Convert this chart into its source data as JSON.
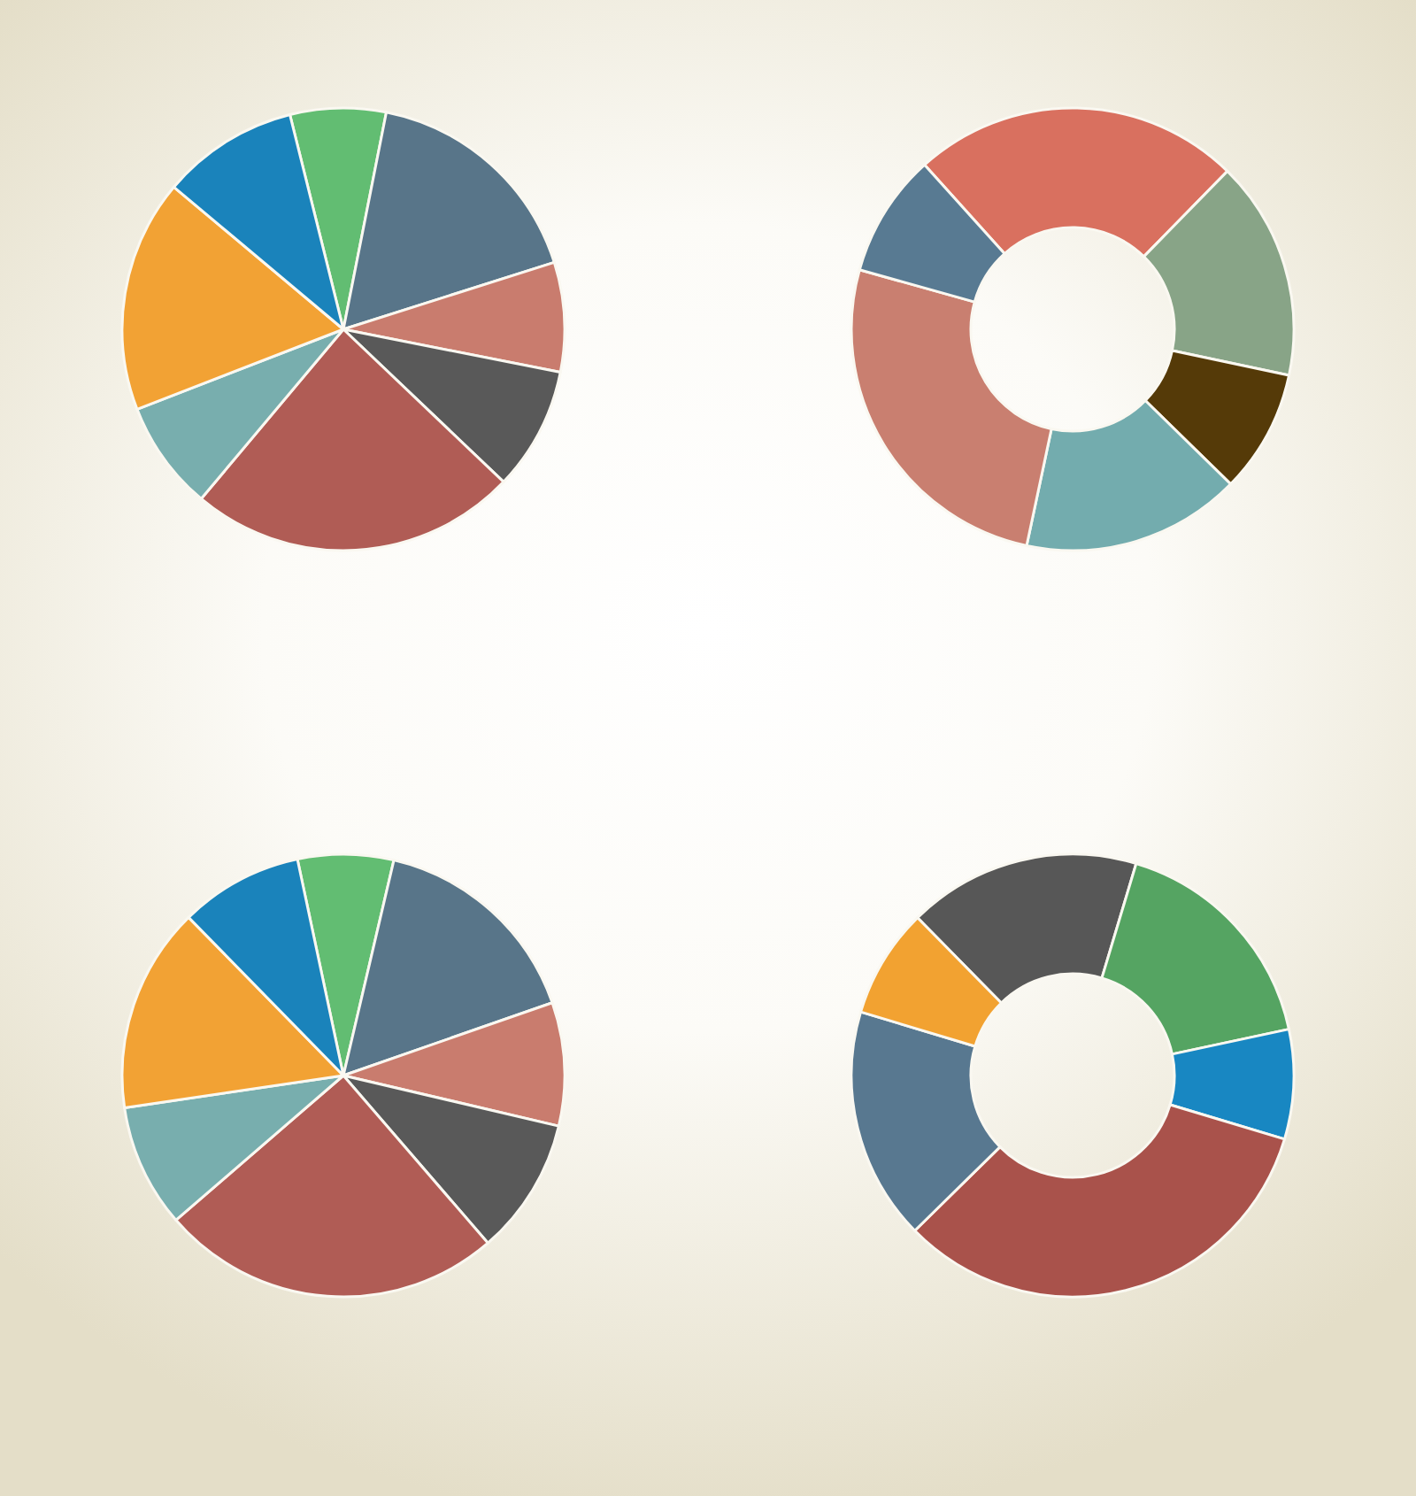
{
  "chart_data": [
    {
      "type": "pie",
      "categories": [
        null,
        null,
        null,
        null,
        null,
        null,
        null,
        null
      ],
      "values": [
        7,
        17,
        8,
        9,
        24,
        8,
        17,
        10
      ],
      "colors": [
        "#62bd72",
        "#587589",
        "#c97c6e",
        "#595959",
        "#b05c55",
        "#78aeae",
        "#f2a234",
        "#1a83bb"
      ]
    },
    {
      "type": "donut",
      "categories": [
        null,
        null,
        null,
        null,
        null,
        null
      ],
      "values": [
        24,
        16,
        9,
        16,
        26,
        9
      ],
      "colors": [
        "#d9705f",
        "#88a487",
        "#553a08",
        "#73acae",
        "#c97f70",
        "#587a92"
      ]
    },
    {
      "type": "pie",
      "categories": [
        null,
        null,
        null,
        null,
        null,
        null,
        null,
        null
      ],
      "values": [
        7,
        16,
        9,
        10,
        25,
        9,
        15,
        9
      ],
      "colors": [
        "#62bd72",
        "#587589",
        "#c97c6e",
        "#595959",
        "#b05c55",
        "#78aeae",
        "#f2a234",
        "#1a83bb"
      ]
    },
    {
      "type": "donut",
      "categories": [
        null,
        null,
        null,
        null,
        null,
        null
      ],
      "values": [
        17,
        17,
        8,
        33,
        17,
        8
      ],
      "colors": [
        "#575757",
        "#55a462",
        "#1887c2",
        "#a9524b",
        "#587890",
        "#f2a231"
      ]
    }
  ]
}
